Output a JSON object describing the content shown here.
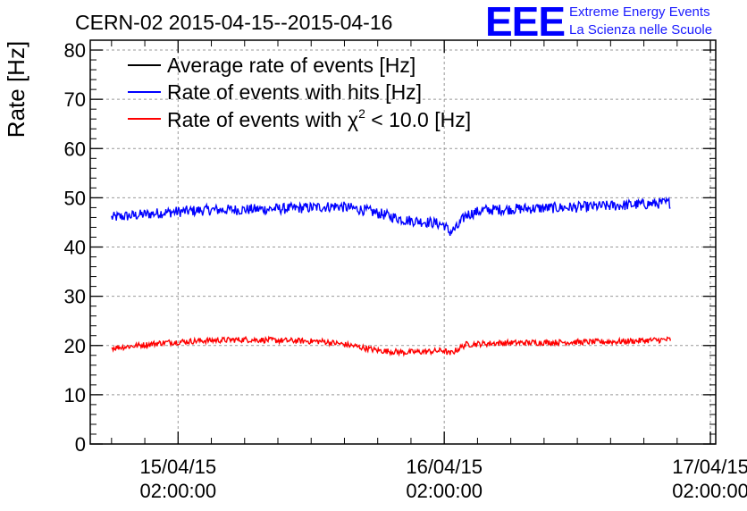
{
  "colors": {
    "average": "#000000",
    "hits": "#0000ff",
    "chi2": "#ff0000",
    "grid": "#999999",
    "logo": "#0000ff"
  },
  "logo": {
    "mark": "EEE",
    "line1": "Extreme Energy Events",
    "line2": "La Scienza nelle Scuole"
  },
  "chart_data": {
    "type": "line",
    "title": "CERN-02 2015-04-15--2015-04-16",
    "ylabel": "Rate [Hz]",
    "xlabel": "",
    "ylim": [
      0,
      82
    ],
    "xlim": [
      -0.33,
      2.02
    ],
    "grid": true,
    "legend_position": "top-left",
    "yticks": [
      0,
      10,
      20,
      30,
      40,
      50,
      60,
      70,
      80
    ],
    "xticks": [
      {
        "value": 0,
        "line1": "15/04/15",
        "line2": "02:00:00"
      },
      {
        "value": 1,
        "line1": "16/04/15",
        "line2": "02:00:00"
      },
      {
        "value": 2,
        "line1": "17/04/15",
        "line2": "02:00:00"
      }
    ],
    "x_units": "days since 15/04/15 02:00:00",
    "series": [
      {
        "name": "Average rate of events [Hz]",
        "color_key": "average",
        "points": []
      },
      {
        "name": "Rate of events with hits [Hz]",
        "color_key": "hits",
        "noise": 1.1,
        "points": [
          [
            -0.25,
            46.0
          ],
          [
            -0.15,
            46.5
          ],
          [
            -0.05,
            47.0
          ],
          [
            0.1,
            47.5
          ],
          [
            0.25,
            47.6
          ],
          [
            0.4,
            47.8
          ],
          [
            0.5,
            48.0
          ],
          [
            0.6,
            48.3
          ],
          [
            0.7,
            47.5
          ],
          [
            0.78,
            46.5
          ],
          [
            0.85,
            45.5
          ],
          [
            0.95,
            45.0
          ],
          [
            1.0,
            44.5
          ],
          [
            1.02,
            43.0
          ],
          [
            1.05,
            44.0
          ],
          [
            1.08,
            46.5
          ],
          [
            1.15,
            47.5
          ],
          [
            1.3,
            47.8
          ],
          [
            1.45,
            48.0
          ],
          [
            1.6,
            48.3
          ],
          [
            1.75,
            48.7
          ],
          [
            1.85,
            49.0
          ]
        ]
      },
      {
        "name": "Rate of events with χ² < 10.0 [Hz]",
        "label_prefix": "Rate of events with ",
        "label_symbol": "χ",
        "label_sup": "2",
        "label_suffix": " < 10.0 [Hz]",
        "color_key": "chi2",
        "noise": 0.6,
        "points": [
          [
            -0.25,
            19.5
          ],
          [
            -0.15,
            20.0
          ],
          [
            -0.05,
            20.6
          ],
          [
            0.1,
            21.0
          ],
          [
            0.25,
            21.2
          ],
          [
            0.4,
            21.0
          ],
          [
            0.55,
            20.8
          ],
          [
            0.65,
            20.0
          ],
          [
            0.75,
            19.0
          ],
          [
            0.85,
            18.6
          ],
          [
            0.95,
            18.8
          ],
          [
            1.0,
            19.0
          ],
          [
            1.02,
            18.3
          ],
          [
            1.05,
            19.2
          ],
          [
            1.08,
            20.2
          ],
          [
            1.2,
            20.5
          ],
          [
            1.35,
            20.6
          ],
          [
            1.5,
            20.7
          ],
          [
            1.65,
            20.8
          ],
          [
            1.85,
            21.2
          ]
        ]
      }
    ]
  }
}
